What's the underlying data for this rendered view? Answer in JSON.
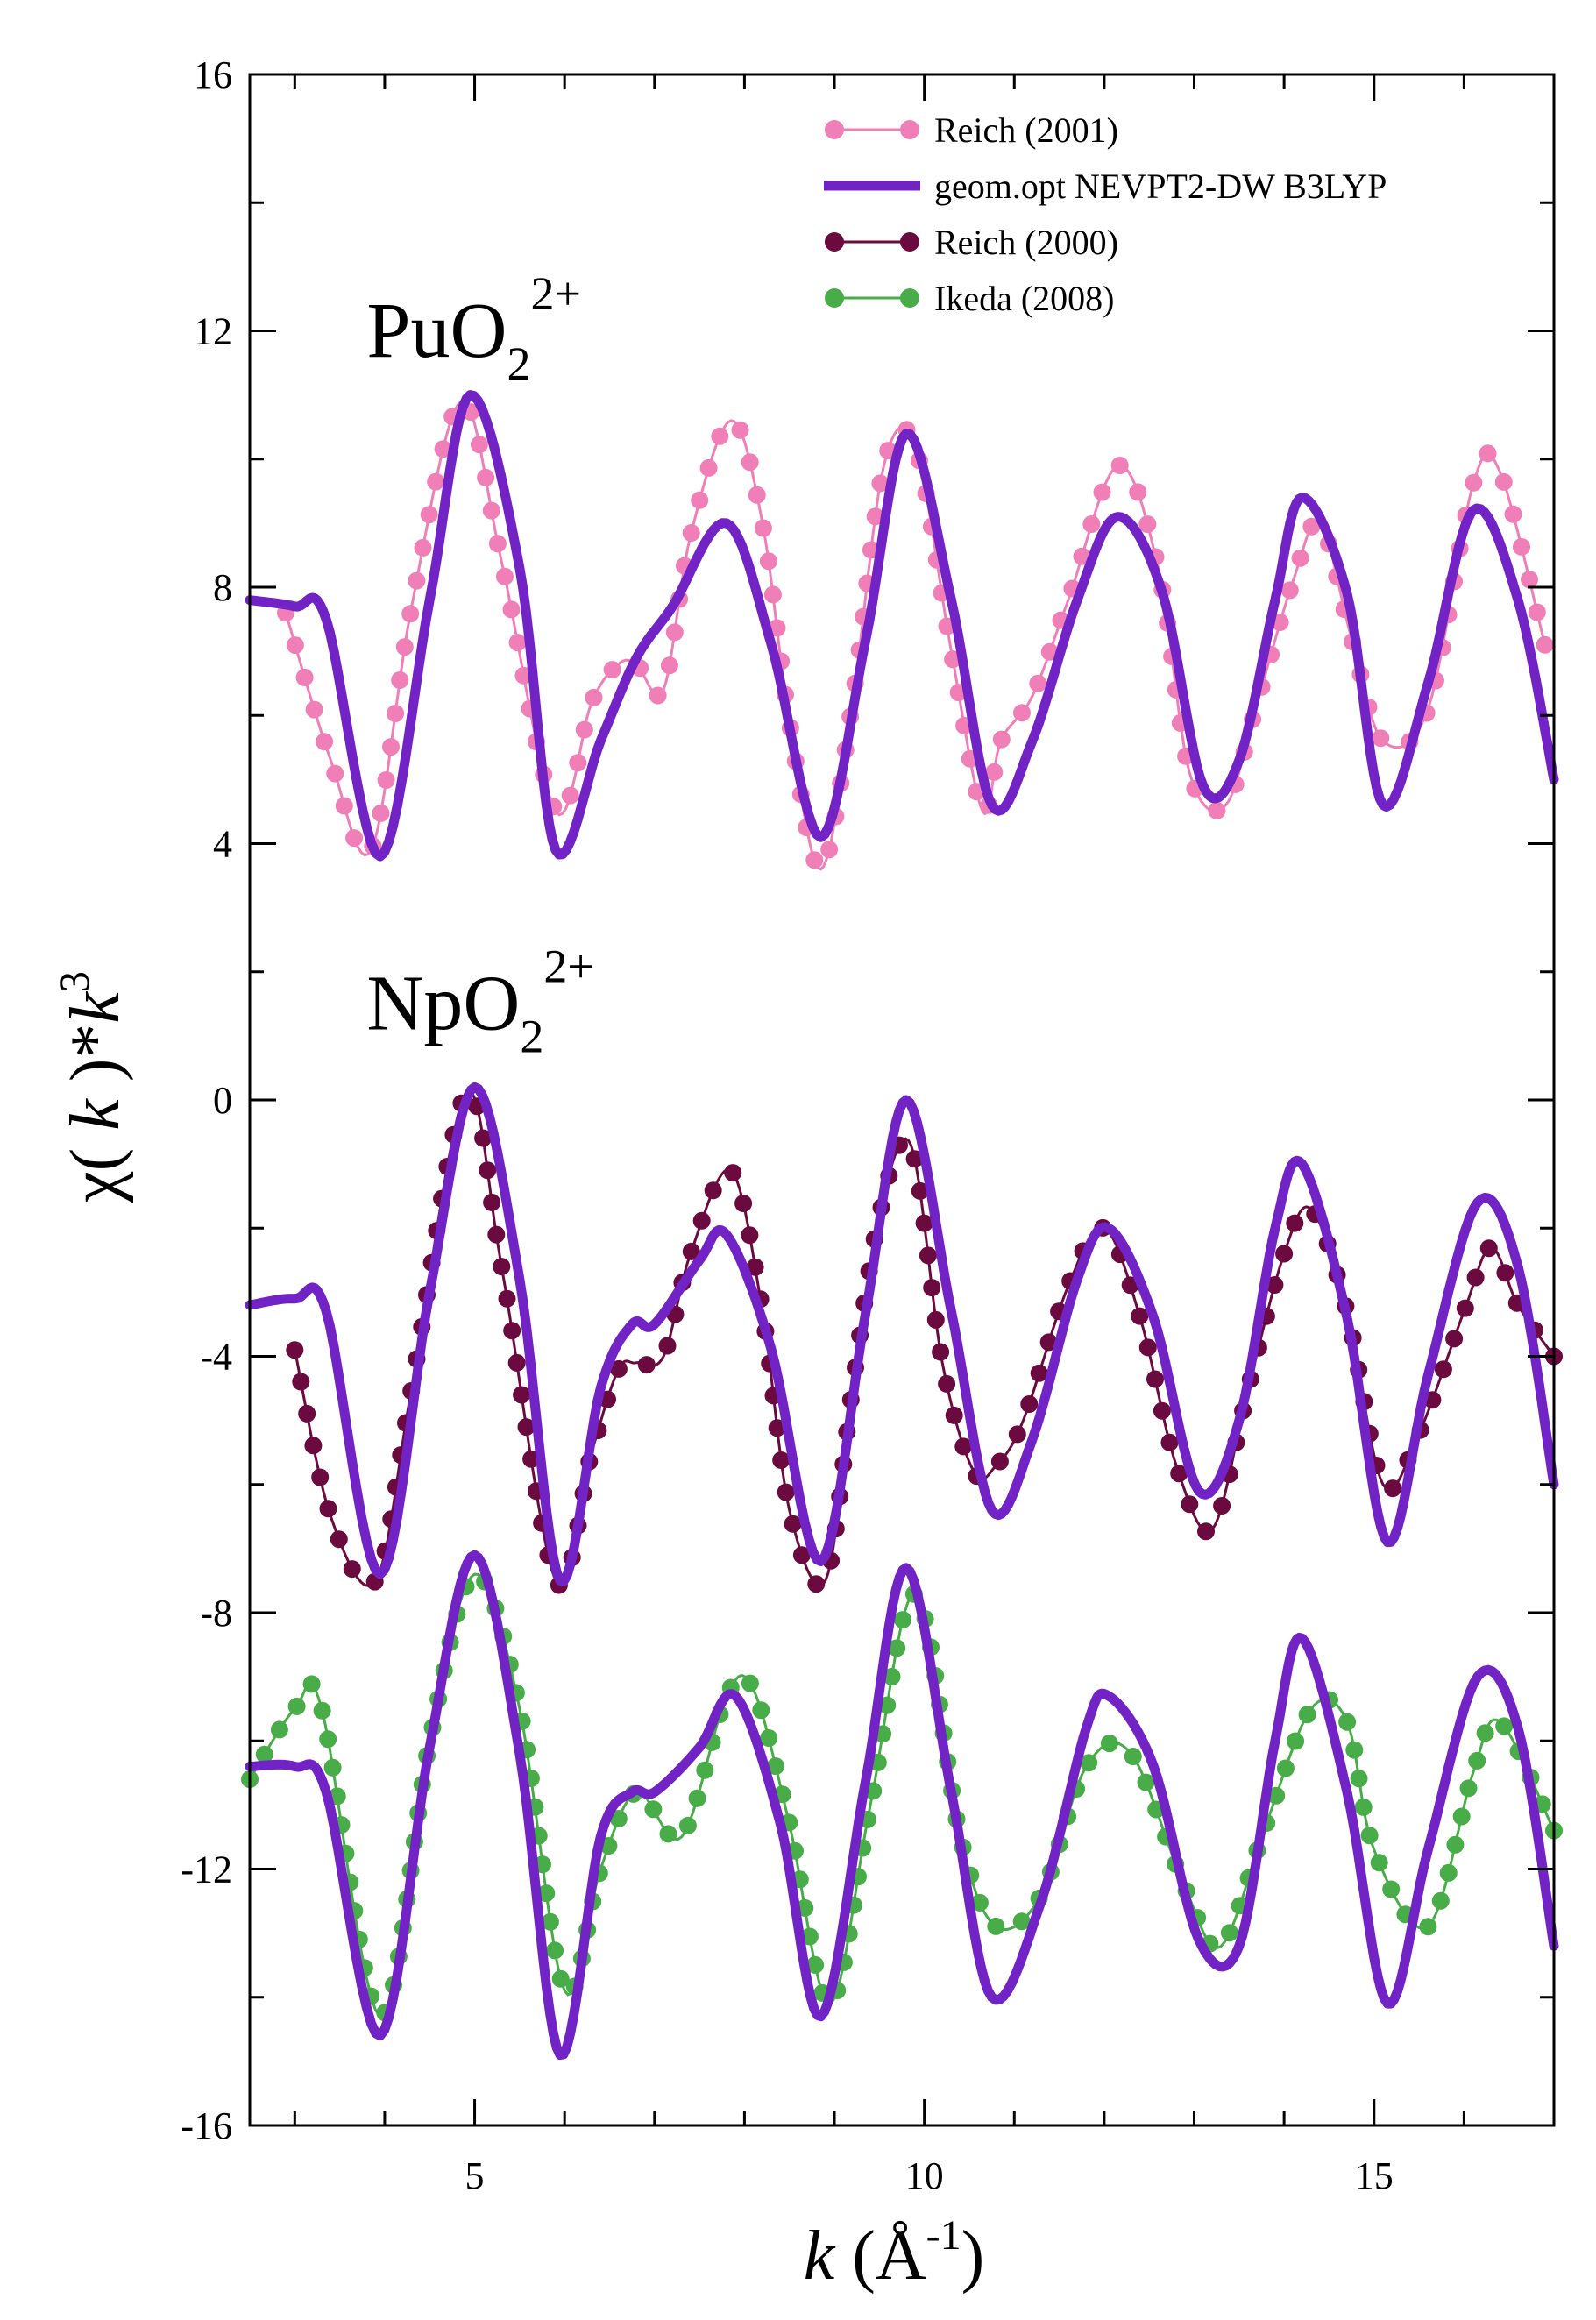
{
  "chart_data": {
    "type": "line",
    "xlim": [
      2.5,
      17
    ],
    "ylim": [
      -16,
      16
    ],
    "xticks": [
      5,
      10,
      15
    ],
    "yticks": [
      16,
      12,
      8,
      4,
      0,
      -4,
      -8,
      -12,
      -16
    ],
    "xlabel": {
      "var": "k",
      "open": " (Å",
      "sup": "-1",
      "close": ")"
    },
    "ylabel": {
      "chi": "χ( ",
      "k1": "k",
      "mid": " )*",
      "k2": "k",
      "sup": "3"
    },
    "annotations": [
      {
        "id": "pu",
        "base": "PuO",
        "sub": "2",
        "sup": "2+",
        "x": 3.8,
        "y": 11.6
      },
      {
        "id": "np",
        "base": "NpO",
        "sub": "2",
        "sup": "2+",
        "x": 3.8,
        "y": 1.1
      }
    ],
    "legend": {
      "position": "top-right",
      "entries": [
        {
          "label": "Reich (2001)",
          "color": "#f07fb8",
          "style": "dots"
        },
        {
          "label": "geom.opt NEVPT2-DW B3LYP",
          "color": "#7223c6",
          "style": "line"
        },
        {
          "label": "Reich (2000)",
          "color": "#6b0a3f",
          "style": "dots"
        },
        {
          "label": "Ikeda (2008)",
          "color": "#48ad48",
          "style": "dots"
        }
      ]
    },
    "series": [
      {
        "name": "Reich (2001)",
        "group": "PuO2 2+",
        "style": "dots",
        "color": "#f07fb8",
        "x": [
          2.9,
          3.4,
          3.85,
          4.3,
          4.85,
          5.3,
          5.9,
          6.3,
          6.6,
          6.8,
          7.1,
          7.4,
          7.85,
          8.2,
          8.5,
          8.85,
          9.2,
          9.55,
          9.9,
          10.3,
          10.65,
          10.85,
          11.2,
          11.6,
          12.15,
          12.6,
          12.95,
          13.35,
          13.7,
          14.1,
          14.4,
          14.75,
          15.1,
          15.6,
          16.1,
          16.4,
          16.9
        ],
        "y": [
          7.6,
          5.3,
          3.9,
          7.7,
          10.9,
          8.4,
          4.5,
          6.2,
          6.8,
          6.8,
          6.4,
          8.8,
          10.6,
          9.0,
          5.9,
          3.6,
          6.2,
          9.9,
          10.2,
          7.0,
          4.5,
          5.6,
          6.3,
          7.8,
          9.9,
          8.3,
          5.1,
          4.6,
          6.2,
          8.1,
          9.0,
          7.2,
          5.6,
          6.1,
          9.6,
          9.8,
          7.1
        ]
      },
      {
        "name": "geom.opt NEVPT2-DW B3LYP",
        "group": "PuO2 2+",
        "style": "line",
        "color": "#7223c6",
        "x": [
          2.5,
          3.0,
          3.35,
          3.95,
          4.5,
          4.95,
          5.5,
          5.9,
          6.4,
          6.8,
          7.2,
          7.8,
          8.3,
          8.85,
          9.35,
          9.8,
          10.3,
          10.75,
          11.2,
          11.7,
          12.15,
          12.65,
          13.1,
          13.5,
          13.9,
          14.2,
          14.7,
          15.1,
          15.6,
          16.1,
          16.6,
          17.0
        ],
        "y": [
          7.8,
          7.7,
          7.5,
          3.8,
          7.8,
          11.0,
          8.3,
          3.9,
          5.6,
          6.9,
          7.7,
          9.0,
          7.1,
          4.1,
          7.2,
          10.4,
          7.8,
          4.6,
          5.6,
          7.8,
          9.1,
          7.9,
          4.9,
          5.3,
          7.8,
          9.4,
          7.9,
          4.6,
          6.5,
          9.2,
          7.8,
          5.0
        ]
      },
      {
        "name": "Reich (2000)",
        "group": "NpO2 2+",
        "style": "dots",
        "color": "#6b0a3f",
        "x": [
          3.0,
          3.4,
          3.9,
          4.3,
          4.9,
          5.3,
          5.9,
          6.3,
          6.6,
          6.8,
          7.1,
          7.4,
          7.85,
          8.2,
          8.5,
          8.9,
          9.2,
          9.5,
          9.85,
          10.2,
          10.55,
          10.8,
          11.1,
          11.6,
          12.0,
          12.4,
          12.8,
          13.2,
          13.6,
          14.0,
          14.3,
          14.7,
          15.1,
          15.5,
          16.0,
          16.3,
          16.6,
          17.0
        ],
        "y": [
          -3.9,
          -6.5,
          -7.5,
          -4.5,
          0.1,
          -2.6,
          -7.5,
          -5.5,
          -4.2,
          -4.1,
          -4.0,
          -2.4,
          -1.1,
          -3.3,
          -6.4,
          -7.5,
          -4.5,
          -1.8,
          -0.7,
          -4.1,
          -5.8,
          -5.7,
          -5.0,
          -2.9,
          -2.0,
          -3.4,
          -5.7,
          -6.7,
          -4.5,
          -2.4,
          -1.7,
          -3.3,
          -6.0,
          -5.2,
          -3.3,
          -2.3,
          -3.2,
          -4.0
        ]
      },
      {
        "name": "geom.opt NEVPT2-DW B3LYP",
        "group": "NpO2 2+",
        "style": "line",
        "color": "#7223c6",
        "x": [
          2.5,
          3.0,
          3.35,
          3.95,
          4.5,
          5.0,
          5.5,
          5.95,
          6.4,
          6.75,
          7.0,
          7.5,
          7.8,
          8.3,
          8.85,
          9.35,
          9.8,
          10.3,
          10.75,
          11.2,
          11.7,
          12.05,
          12.55,
          13.05,
          13.5,
          13.9,
          14.2,
          14.7,
          15.15,
          15.6,
          16.15,
          16.6,
          17.0
        ],
        "y": [
          -3.2,
          -3.1,
          -3.3,
          -7.4,
          -3.0,
          0.2,
          -2.8,
          -7.5,
          -4.5,
          -3.5,
          -3.5,
          -2.5,
          -2.1,
          -3.9,
          -7.2,
          -3.3,
          0.0,
          -3.3,
          -6.4,
          -5.3,
          -2.8,
          -2.0,
          -3.4,
          -6.1,
          -5.0,
          -2.0,
          -1.0,
          -3.4,
          -6.9,
          -4.3,
          -1.6,
          -2.6,
          -6.0
        ]
      },
      {
        "name": "Ikeda (2008)",
        "group": "NpO2 2+",
        "style": "dots",
        "color": "#48ad48",
        "x": [
          2.5,
          3.0,
          3.3,
          3.95,
          4.5,
          5.0,
          5.5,
          6.0,
          6.4,
          6.8,
          7.3,
          7.8,
          8.1,
          8.5,
          8.95,
          9.4,
          9.9,
          10.4,
          10.8,
          11.3,
          11.8,
          12.3,
          12.9,
          13.3,
          13.8,
          14.3,
          14.7,
          15.0,
          15.6,
          16.1,
          16.4,
          17.0
        ],
        "y": [
          -10.6,
          -9.5,
          -9.5,
          -14.3,
          -10.0,
          -7.4,
          -9.5,
          -13.9,
          -12.0,
          -10.8,
          -11.5,
          -9.3,
          -9.2,
          -11.3,
          -14.1,
          -11.0,
          -7.7,
          -11.5,
          -12.9,
          -12.4,
          -10.4,
          -10.2,
          -12.3,
          -13.2,
          -11.3,
          -9.5,
          -9.7,
          -11.7,
          -12.9,
          -10.5,
          -9.7,
          -11.4
        ]
      },
      {
        "name": "geom.opt NEVPT2-DW B3LYP",
        "group": "NpO2 2+ (Ikeda)",
        "style": "line",
        "color": "#7223c6",
        "x": [
          2.5,
          3.0,
          3.35,
          3.95,
          4.5,
          5.0,
          5.5,
          5.95,
          6.4,
          6.75,
          7.0,
          7.5,
          7.9,
          8.4,
          8.85,
          9.35,
          9.8,
          10.3,
          10.75,
          11.3,
          11.8,
          12.05,
          12.55,
          13.05,
          13.5,
          13.9,
          14.2,
          14.7,
          15.15,
          15.6,
          16.15,
          16.6,
          17.0
        ],
        "y": [
          -10.4,
          -10.4,
          -10.8,
          -14.6,
          -10.1,
          -7.1,
          -10.2,
          -14.9,
          -11.5,
          -10.8,
          -10.8,
          -10.1,
          -9.3,
          -11.3,
          -14.3,
          -10.6,
          -7.3,
          -10.8,
          -14.0,
          -12.5,
          -9.8,
          -9.3,
          -10.4,
          -13.1,
          -13.2,
          -10.0,
          -8.4,
          -10.8,
          -14.1,
          -11.7,
          -9.0,
          -9.8,
          -13.2
        ]
      }
    ]
  }
}
